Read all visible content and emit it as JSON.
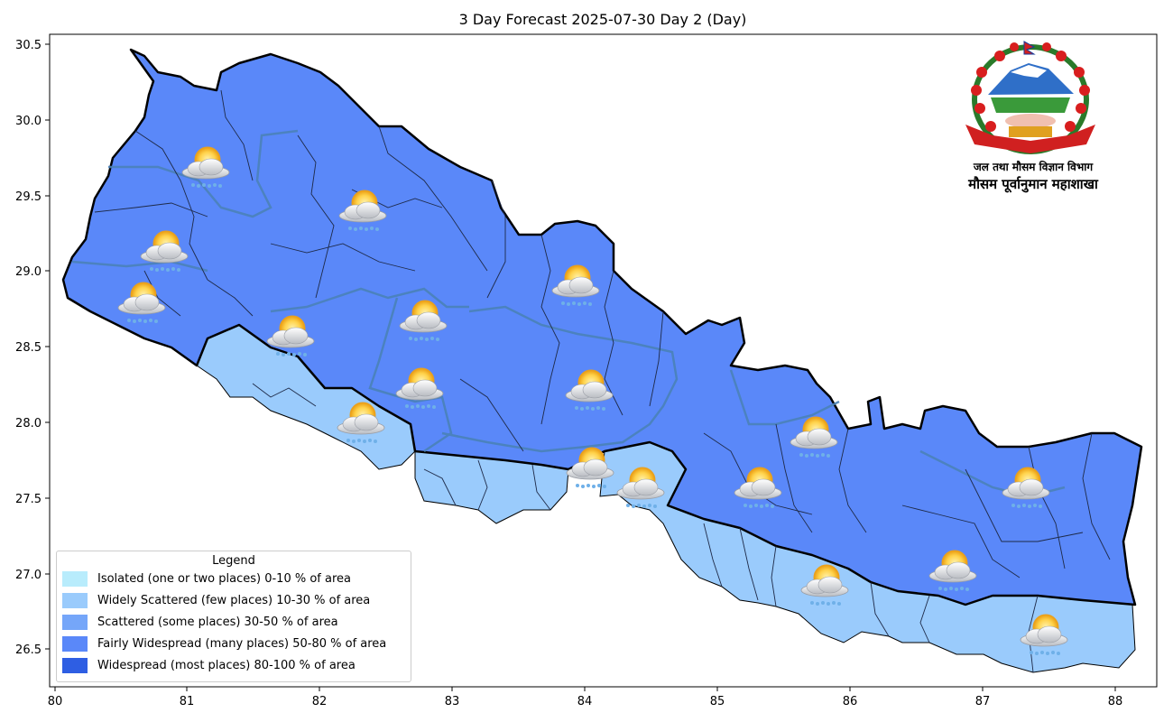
{
  "title": "3 Day Forecast 2025-07-30 Day 2 (Day)",
  "x_ticks": [
    "80",
    "81",
    "82",
    "83",
    "84",
    "85",
    "86",
    "87",
    "88"
  ],
  "y_ticks": [
    "30.5",
    "30.0",
    "29.5",
    "29.0",
    "28.5",
    "28.0",
    "27.5",
    "27.0",
    "26.5"
  ],
  "legend": {
    "title": "Legend",
    "items": [
      {
        "label": "Isolated (one or two places)  0-10 % of area",
        "color": "#b8ecfc"
      },
      {
        "label": "Widely Scattered (few places) 10-30 % of area",
        "color": "#9acbfc"
      },
      {
        "label": "Scattered (some places) 30-50  % of area",
        "color": "#75a6f9"
      },
      {
        "label": "Fairly Widespread (many places) 50-80 % of area",
        "color": "#5a88f9"
      },
      {
        "label": "Widespread (most places) 80-100 % of area",
        "color": "#2e5ee3"
      }
    ]
  },
  "agency": {
    "line1": "जल तथा मौसम विज्ञान विभाग",
    "line2": "मौसम पूर्वानुमान महाशाखा",
    "emblem": "nepal-emblem"
  },
  "weather_icon": "sun-cloud-rain-icon",
  "map_colors": {
    "border": "#000000",
    "district": "#2a3a5a",
    "province": "#4a82b8"
  }
}
